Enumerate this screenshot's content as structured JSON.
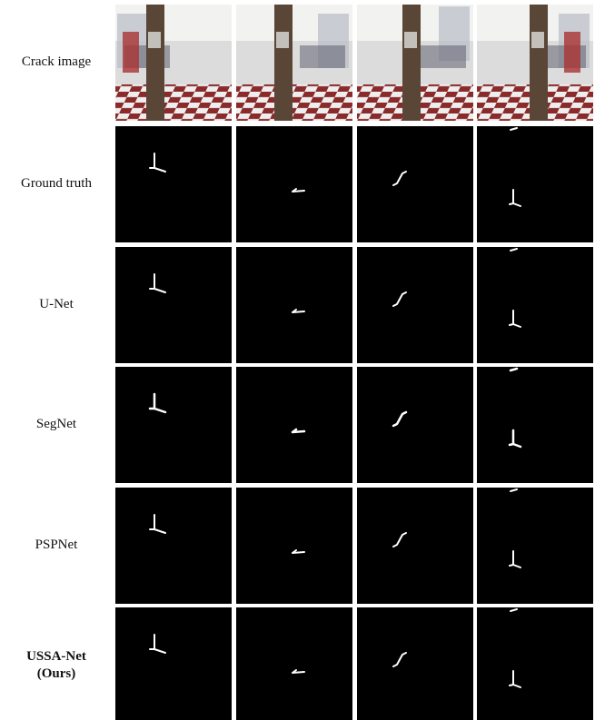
{
  "figure": {
    "rows": [
      {
        "label": "Crack image"
      },
      {
        "label": "Ground truth"
      },
      {
        "label": "U-Net"
      },
      {
        "label": "SegNet"
      },
      {
        "label": "PSPNet"
      },
      {
        "label_lines": [
          "USSA-Net",
          "(Ours)"
        ]
      }
    ]
  }
}
